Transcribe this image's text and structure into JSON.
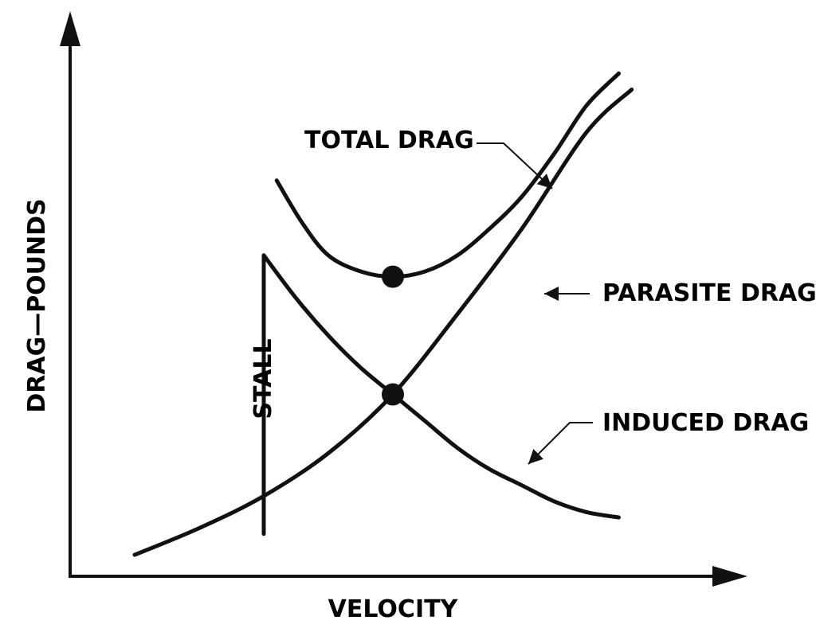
{
  "chart_data": {
    "type": "line",
    "xlabel": "VELOCITY",
    "ylabel": "DRAG—POUNDS",
    "xlim": [
      0,
      10
    ],
    "ylim": [
      0,
      10
    ],
    "ticks": false,
    "grid": false,
    "series": [
      {
        "name": "TOTAL DRAG",
        "x": [
          3.2,
          3.6,
          4.0,
          4.5,
          5.0,
          5.5,
          6.0,
          6.5,
          7.0,
          7.5,
          8.0,
          8.5
        ],
        "y": [
          7.4,
          6.6,
          6.0,
          5.7,
          5.6,
          5.7,
          6.0,
          6.5,
          7.1,
          7.9,
          8.8,
          9.4
        ]
      },
      {
        "name": "PARASITE DRAG",
        "x": [
          1.0,
          2.0,
          3.0,
          4.0,
          5.0,
          6.0,
          7.0,
          8.0,
          8.7
        ],
        "y": [
          0.4,
          0.9,
          1.5,
          2.3,
          3.4,
          4.9,
          6.5,
          8.3,
          9.1
        ]
      },
      {
        "name": "INDUCED DRAG",
        "x": [
          3.0,
          3.5,
          4.0,
          4.5,
          5.0,
          5.5,
          6.0,
          6.5,
          7.0,
          7.5,
          8.0,
          8.5
        ],
        "y": [
          6.0,
          5.2,
          4.5,
          3.9,
          3.4,
          2.9,
          2.4,
          2.0,
          1.7,
          1.4,
          1.2,
          1.1
        ]
      }
    ],
    "markers": [
      {
        "x": 5.0,
        "y": 5.6
      },
      {
        "x": 5.0,
        "y": 3.4
      }
    ],
    "annotations": [
      {
        "text": "STALL",
        "x": 3.0
      }
    ]
  }
}
